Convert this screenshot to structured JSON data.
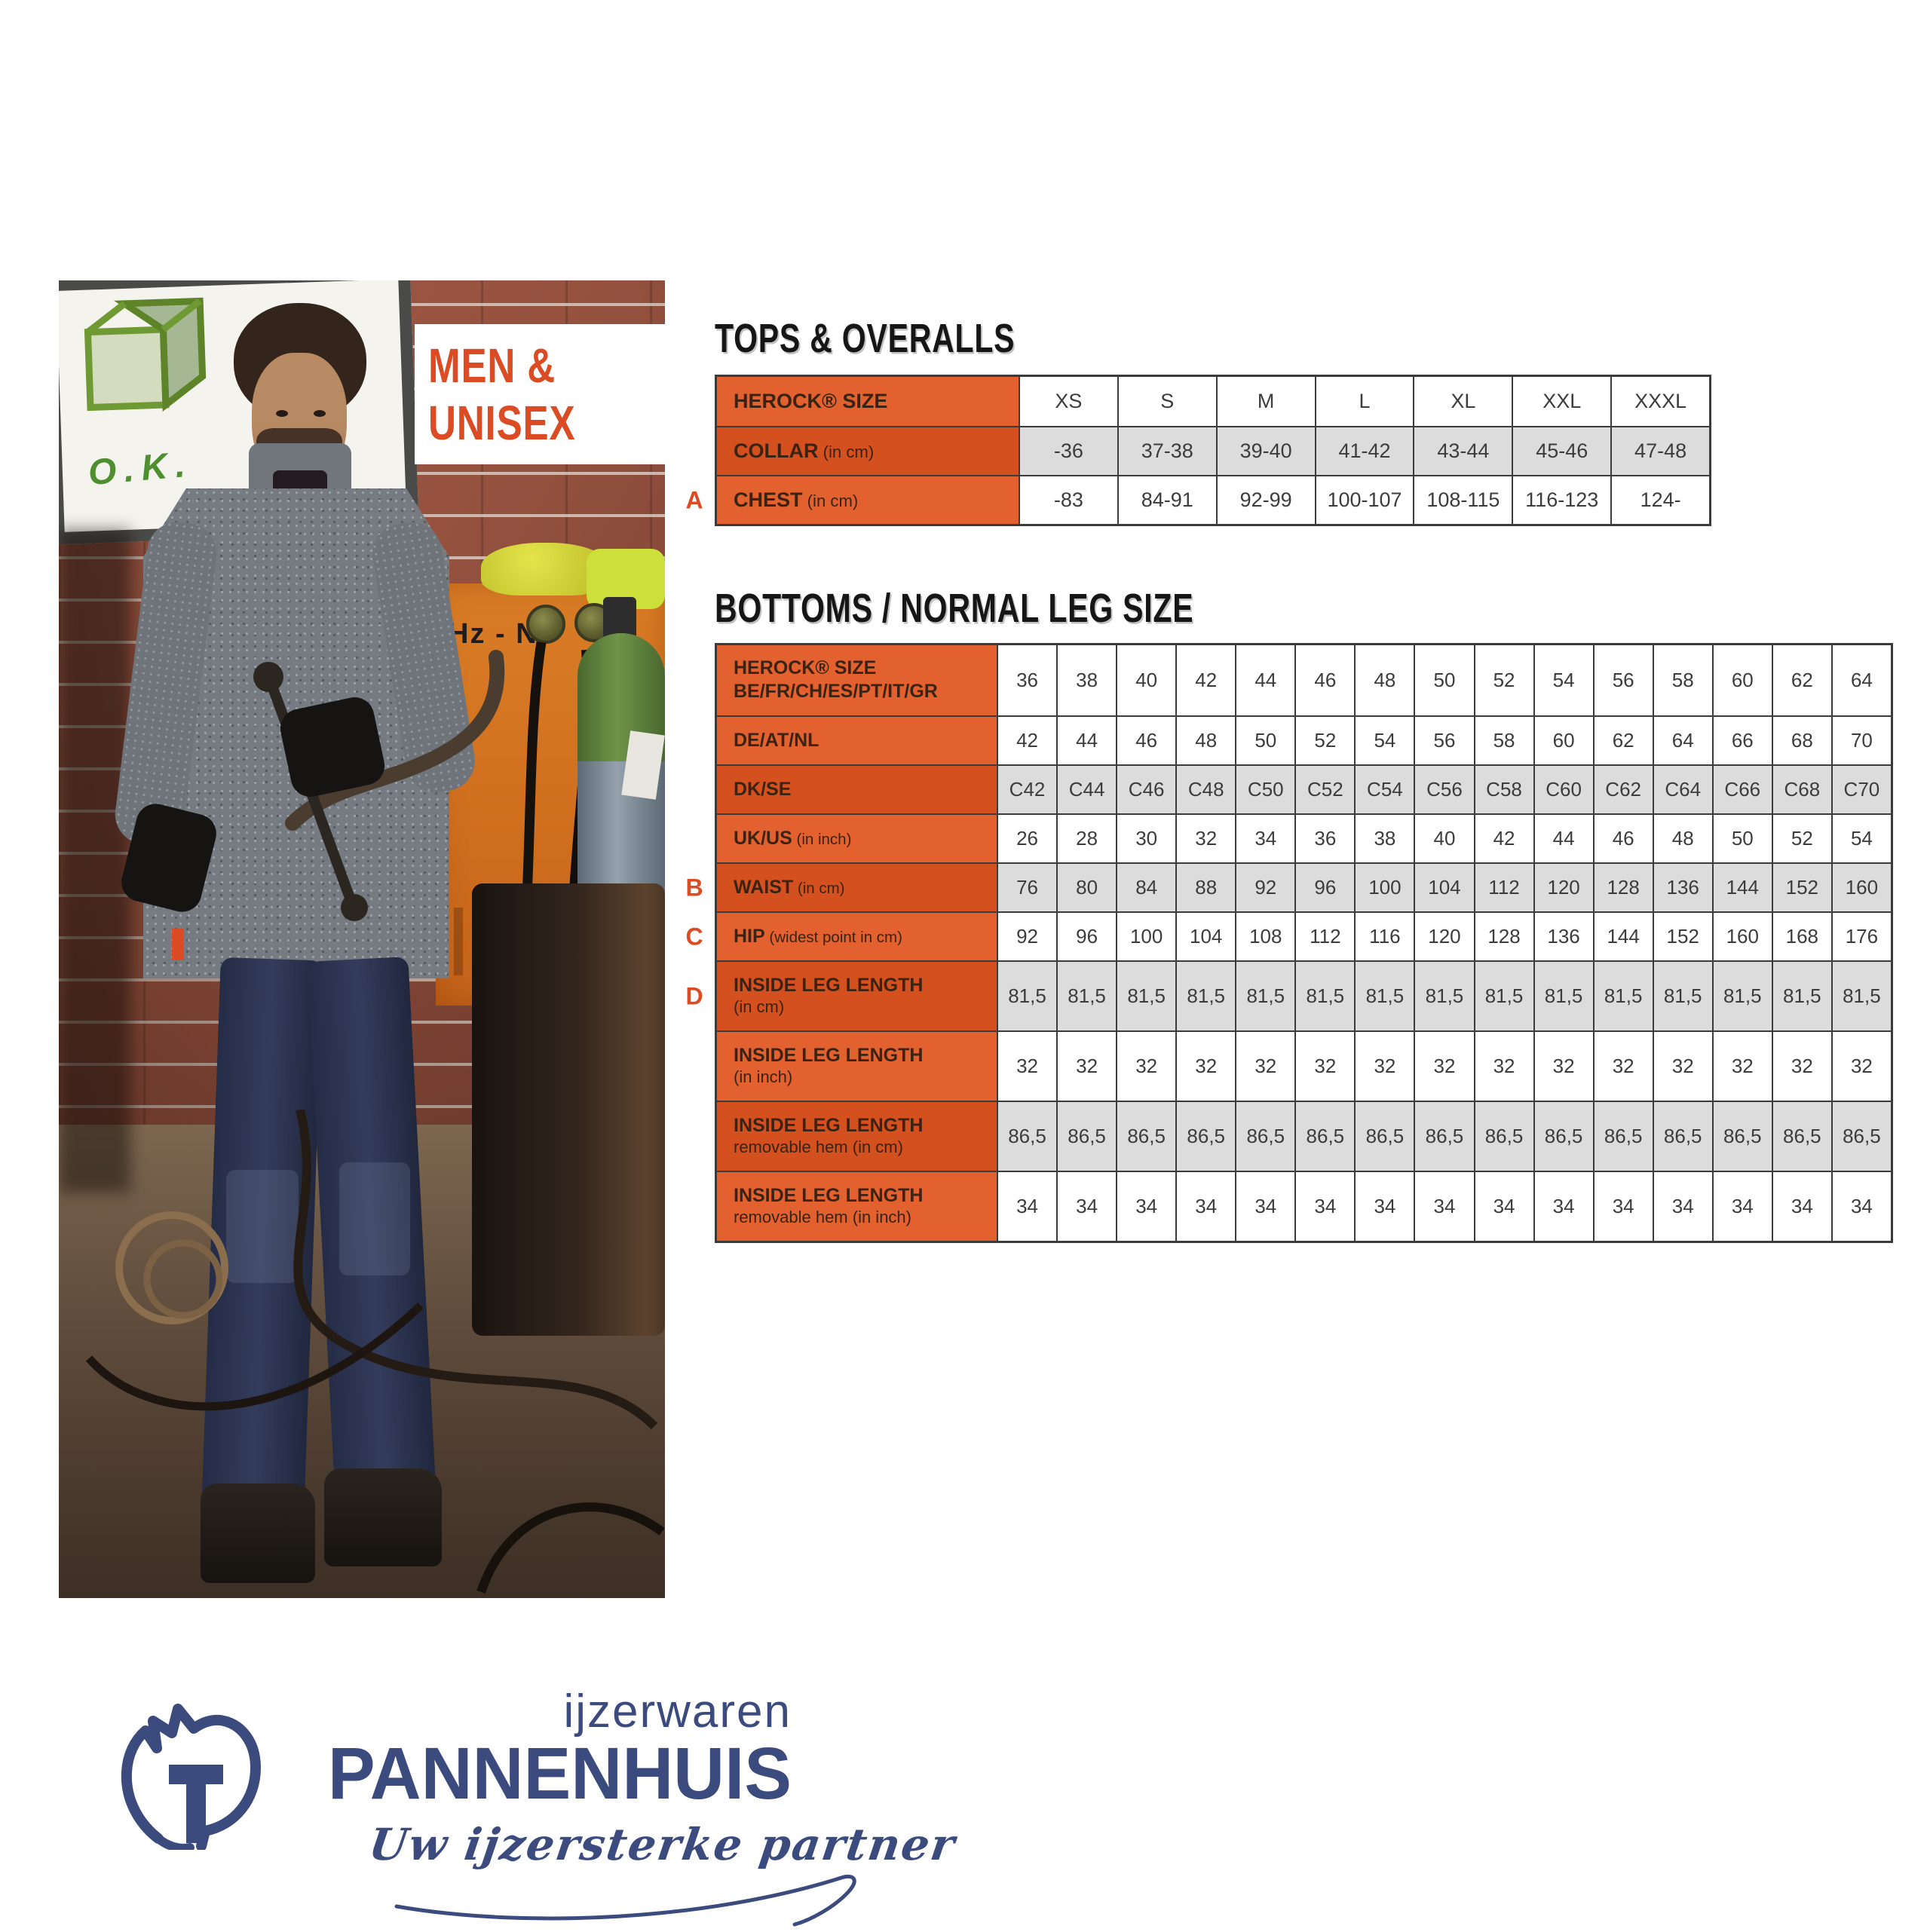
{
  "page": {
    "background": "#ffffff"
  },
  "colors": {
    "accent_orange": "#DB4C24",
    "orange_light": "#E2612F",
    "orange_dark": "#D5501F",
    "row_gray": "#DCDCDC",
    "row_white": "#FFFFFF",
    "border": "#3B3B3B",
    "label_text": "#3A2313",
    "cell_text": "#3C3C3C",
    "navy": "#3C4B7E",
    "title": "#161616",
    "sign_green": "#4E8F2F"
  },
  "badge": {
    "line1": "MEN &",
    "line2": "UNISEX"
  },
  "photo": {
    "sign_text": "O.K.",
    "machine_text": "Hz - N"
  },
  "tops_table": {
    "title": "TOPS & OVERALLS",
    "rows": [
      {
        "marker": "",
        "label": "HEROCK® SIZE",
        "note": "",
        "line2": "",
        "line2_bold": false,
        "shaded": false,
        "values": [
          "XS",
          "S",
          "M",
          "L",
          "XL",
          "XXL",
          "XXXL"
        ]
      },
      {
        "marker": "",
        "label": "COLLAR",
        "note": "(in cm)",
        "line2": "",
        "line2_bold": false,
        "shaded": true,
        "values": [
          "-36",
          "37-38",
          "39-40",
          "41-42",
          "43-44",
          "45-46",
          "47-48"
        ]
      },
      {
        "marker": "A",
        "label": "CHEST",
        "note": "(in cm)",
        "line2": "",
        "line2_bold": false,
        "shaded": false,
        "values": [
          "-83",
          "84-91",
          "92-99",
          "100-107",
          "108-115",
          "116-123",
          "124-"
        ]
      }
    ]
  },
  "bottoms_table": {
    "title": "BOTTOMS / NORMAL LEG SIZE",
    "rows": [
      {
        "marker": "",
        "label": "HEROCK® SIZE",
        "note": "",
        "line2": "BE/FR/CH/ES/PT/IT/GR",
        "line2_bold": true,
        "shaded": false,
        "values": [
          "36",
          "38",
          "40",
          "42",
          "44",
          "46",
          "48",
          "50",
          "52",
          "54",
          "56",
          "58",
          "60",
          "62",
          "64"
        ]
      },
      {
        "marker": "",
        "label": "DE/AT/NL",
        "note": "",
        "line2": "",
        "line2_bold": false,
        "shaded": false,
        "values": [
          "42",
          "44",
          "46",
          "48",
          "50",
          "52",
          "54",
          "56",
          "58",
          "60",
          "62",
          "64",
          "66",
          "68",
          "70"
        ]
      },
      {
        "marker": "",
        "label": "DK/SE",
        "note": "",
        "line2": "",
        "line2_bold": false,
        "shaded": true,
        "values": [
          "C42",
          "C44",
          "C46",
          "C48",
          "C50",
          "C52",
          "C54",
          "C56",
          "C58",
          "C60",
          "C62",
          "C64",
          "C66",
          "C68",
          "C70"
        ]
      },
      {
        "marker": "",
        "label": "UK/US",
        "note": "(in inch)",
        "line2": "",
        "line2_bold": false,
        "shaded": false,
        "values": [
          "26",
          "28",
          "30",
          "32",
          "34",
          "36",
          "38",
          "40",
          "42",
          "44",
          "46",
          "48",
          "50",
          "52",
          "54"
        ]
      },
      {
        "marker": "B",
        "label": "WAIST",
        "note": "(in cm)",
        "line2": "",
        "line2_bold": false,
        "shaded": true,
        "values": [
          "76",
          "80",
          "84",
          "88",
          "92",
          "96",
          "100",
          "104",
          "112",
          "120",
          "128",
          "136",
          "144",
          "152",
          "160"
        ]
      },
      {
        "marker": "C",
        "label": "HIP",
        "note": "(widest point in cm)",
        "line2": "",
        "line2_bold": false,
        "shaded": false,
        "values": [
          "92",
          "96",
          "100",
          "104",
          "108",
          "112",
          "116",
          "120",
          "128",
          "136",
          "144",
          "152",
          "160",
          "168",
          "176"
        ]
      },
      {
        "marker": "D",
        "label": "INSIDE LEG LENGTH",
        "note": "",
        "line2": "(in cm)",
        "line2_bold": false,
        "shaded": true,
        "values": [
          "81,5",
          "81,5",
          "81,5",
          "81,5",
          "81,5",
          "81,5",
          "81,5",
          "81,5",
          "81,5",
          "81,5",
          "81,5",
          "81,5",
          "81,5",
          "81,5",
          "81,5"
        ]
      },
      {
        "marker": "",
        "label": "INSIDE LEG LENGTH",
        "note": "",
        "line2": "(in inch)",
        "line2_bold": false,
        "shaded": false,
        "values": [
          "32",
          "32",
          "32",
          "32",
          "32",
          "32",
          "32",
          "32",
          "32",
          "32",
          "32",
          "32",
          "32",
          "32",
          "32"
        ]
      },
      {
        "marker": "",
        "label": "INSIDE LEG LENGTH",
        "note": "",
        "line2": "removable hem (in cm)",
        "line2_bold": false,
        "shaded": true,
        "values": [
          "86,5",
          "86,5",
          "86,5",
          "86,5",
          "86,5",
          "86,5",
          "86,5",
          "86,5",
          "86,5",
          "86,5",
          "86,5",
          "86,5",
          "86,5",
          "86,5",
          "86,5"
        ]
      },
      {
        "marker": "",
        "label": "INSIDE LEG LENGTH",
        "note": "",
        "line2": "removable hem (in inch)",
        "line2_bold": false,
        "shaded": false,
        "values": [
          "34",
          "34",
          "34",
          "34",
          "34",
          "34",
          "34",
          "34",
          "34",
          "34",
          "34",
          "34",
          "34",
          "34",
          "34"
        ]
      }
    ]
  },
  "logo": {
    "line_top": "ijzerwaren",
    "line_main": "PANNENHUIS",
    "tagline": "Uw ijzersterke partner"
  }
}
